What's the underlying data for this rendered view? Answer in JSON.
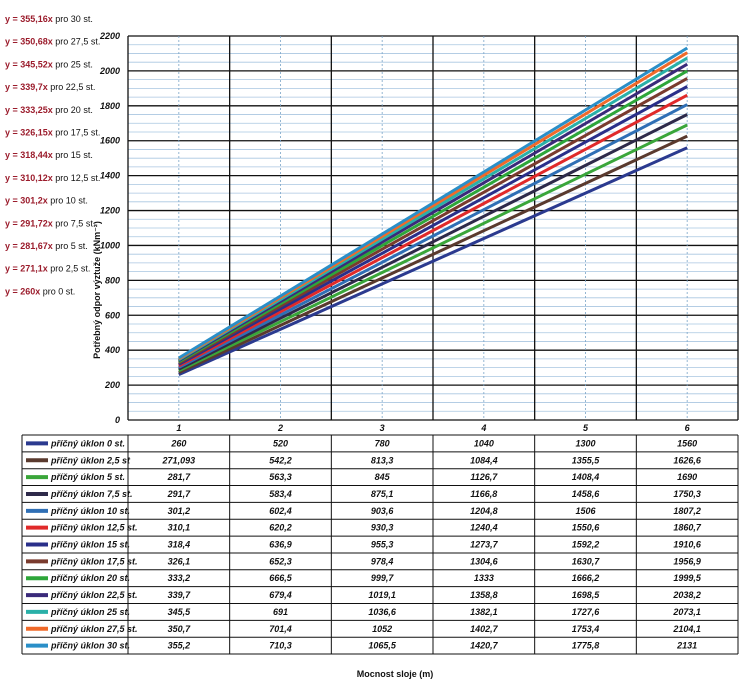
{
  "chart_data": {
    "type": "line",
    "title": "",
    "xlabel": "Mocnost sloje (m)",
    "ylabel": "Potřebný odpor výztuže (kNm⁻²)",
    "ylim": [
      0,
      2200
    ],
    "yticks": [
      "0",
      "200",
      "400",
      "600",
      "800",
      "1000",
      "1200",
      "1400",
      "1600",
      "1800",
      "2000",
      "2200"
    ],
    "categories": [
      "1",
      "2",
      "3",
      "4",
      "5",
      "6"
    ],
    "grid": true,
    "legend": "data-table-below",
    "series": [
      {
        "name": "příčný úklon 0 st.",
        "color": "#2b3a8f",
        "values": [
          260,
          520,
          780,
          1040,
          1300,
          1560
        ],
        "labels": [
          "260",
          "520",
          "780",
          "1040",
          "1300",
          "1560"
        ]
      },
      {
        "name": "příčný úklon 2,5 st",
        "color": "#5a3a2e",
        "values": [
          271.093,
          542.2,
          813.3,
          1084.4,
          1355.5,
          1626.6
        ],
        "labels": [
          "271,093",
          "542,2",
          "813,3",
          "1084,4",
          "1355,5",
          "1626,6"
        ]
      },
      {
        "name": "příčný úklon 5 st.",
        "color": "#3aa63a",
        "values": [
          281.7,
          563.3,
          845,
          1126.7,
          1408.4,
          1690
        ],
        "labels": [
          "281,7",
          "563,3",
          "845",
          "1126,7",
          "1408,4",
          "1690"
        ]
      },
      {
        "name": "příčný úklon 7,5 st.",
        "color": "#2e2a4a",
        "values": [
          291.7,
          583.4,
          875.1,
          1166.8,
          1458.6,
          1750.3
        ],
        "labels": [
          "291,7",
          "583,4",
          "875,1",
          "1166,8",
          "1458,6",
          "1750,3"
        ]
      },
      {
        "name": "příčný úklon 10 st.",
        "color": "#2f6fb5",
        "values": [
          301.2,
          602.4,
          903.6,
          1204.8,
          1506,
          1807.2
        ],
        "labels": [
          "301,2",
          "602,4",
          "903,6",
          "1204,8",
          "1506",
          "1807,2"
        ]
      },
      {
        "name": "příčný úklon 12,5 st.",
        "color": "#e02a2a",
        "values": [
          310.1,
          620.2,
          930.3,
          1240.4,
          1550.6,
          1860.7
        ],
        "labels": [
          "310,1",
          "620,2",
          "930,3",
          "1240,4",
          "1550,6",
          "1860,7"
        ]
      },
      {
        "name": "příčný úklon 15 st.",
        "color": "#2a2f8a",
        "values": [
          318.4,
          636.9,
          955.3,
          1273.7,
          1592.2,
          1910.6
        ],
        "labels": [
          "318,4",
          "636,9",
          "955,3",
          "1273,7",
          "1592,2",
          "1910,6"
        ]
      },
      {
        "name": "příčný úklon 17,5 st.",
        "color": "#7a3b2e",
        "values": [
          326.1,
          652.3,
          978.4,
          1304.6,
          1630.7,
          1956.9
        ],
        "labels": [
          "326,1",
          "652,3",
          "978,4",
          "1304,6",
          "1630,7",
          "1956,9"
        ]
      },
      {
        "name": "příčný úklon 20 st.",
        "color": "#2ea63a",
        "values": [
          333.2,
          666.5,
          999.7,
          1333,
          1666.2,
          1999.5
        ],
        "labels": [
          "333,2",
          "666,5",
          "999,7",
          "1333",
          "1666,2",
          "1999,5"
        ]
      },
      {
        "name": "příčný úklon 22,5 st.",
        "color": "#3a2a7a",
        "values": [
          339.7,
          679.4,
          1019.1,
          1358.8,
          1698.5,
          2038.2
        ],
        "labels": [
          "339,7",
          "679,4",
          "1019,1",
          "1358,8",
          "1698,5",
          "2038,2"
        ]
      },
      {
        "name": "příčný úklon 25 st.",
        "color": "#2ab0a8",
        "values": [
          345.5,
          691,
          1036.6,
          1382.1,
          1727.6,
          2073.1
        ],
        "labels": [
          "345,5",
          "691",
          "1036,6",
          "1382,1",
          "1727,6",
          "2073,1"
        ]
      },
      {
        "name": "příčný úklon 27,5 st.",
        "color": "#f06a2a",
        "values": [
          350.7,
          701.4,
          1052,
          1402.7,
          1753.4,
          2104.1
        ],
        "labels": [
          "350,7",
          "701,4",
          "1052",
          "1402,7",
          "1753,4",
          "2104,1"
        ]
      },
      {
        "name": "příčný úklon 30 st.",
        "color": "#2a8fc8",
        "values": [
          355.2,
          710.3,
          1065.5,
          1420.7,
          1775.8,
          2131
        ],
        "labels": [
          "355,2",
          "710,3",
          "1065,5",
          "1420,7",
          "1775,8",
          "2131"
        ]
      }
    ],
    "annotations": [
      {
        "coef": "y = 355,16x",
        "rest": " pro  30 st."
      },
      {
        "coef": "y = 350,68x",
        "rest": " pro 27,5 st."
      },
      {
        "coef": "y = 345,52x",
        "rest": " pro 25 st."
      },
      {
        "coef": "y = 339,7x",
        "rest": " pro 22,5 st."
      },
      {
        "coef": "y = 333,25x",
        "rest": " pro 20 st."
      },
      {
        "coef": "y = 326,15x",
        "rest": " pro 17,5 st."
      },
      {
        "coef": "y = 318,44x",
        "rest": " pro  15 st."
      },
      {
        "coef": "y = 310,12x",
        "rest": " pro 12,5 st."
      },
      {
        "coef": "y = 301,2x",
        "rest": " pro 10 st."
      },
      {
        "coef": "y = 291,72x",
        "rest": " pro 7,5 st."
      },
      {
        "coef": "y = 281,67x",
        "rest": " pro 5 st."
      },
      {
        "coef": "y = 271,1x",
        "rest": " pro 2,5 st."
      },
      {
        "coef": "y = 260x",
        "rest": " pro 0 st."
      }
    ]
  }
}
